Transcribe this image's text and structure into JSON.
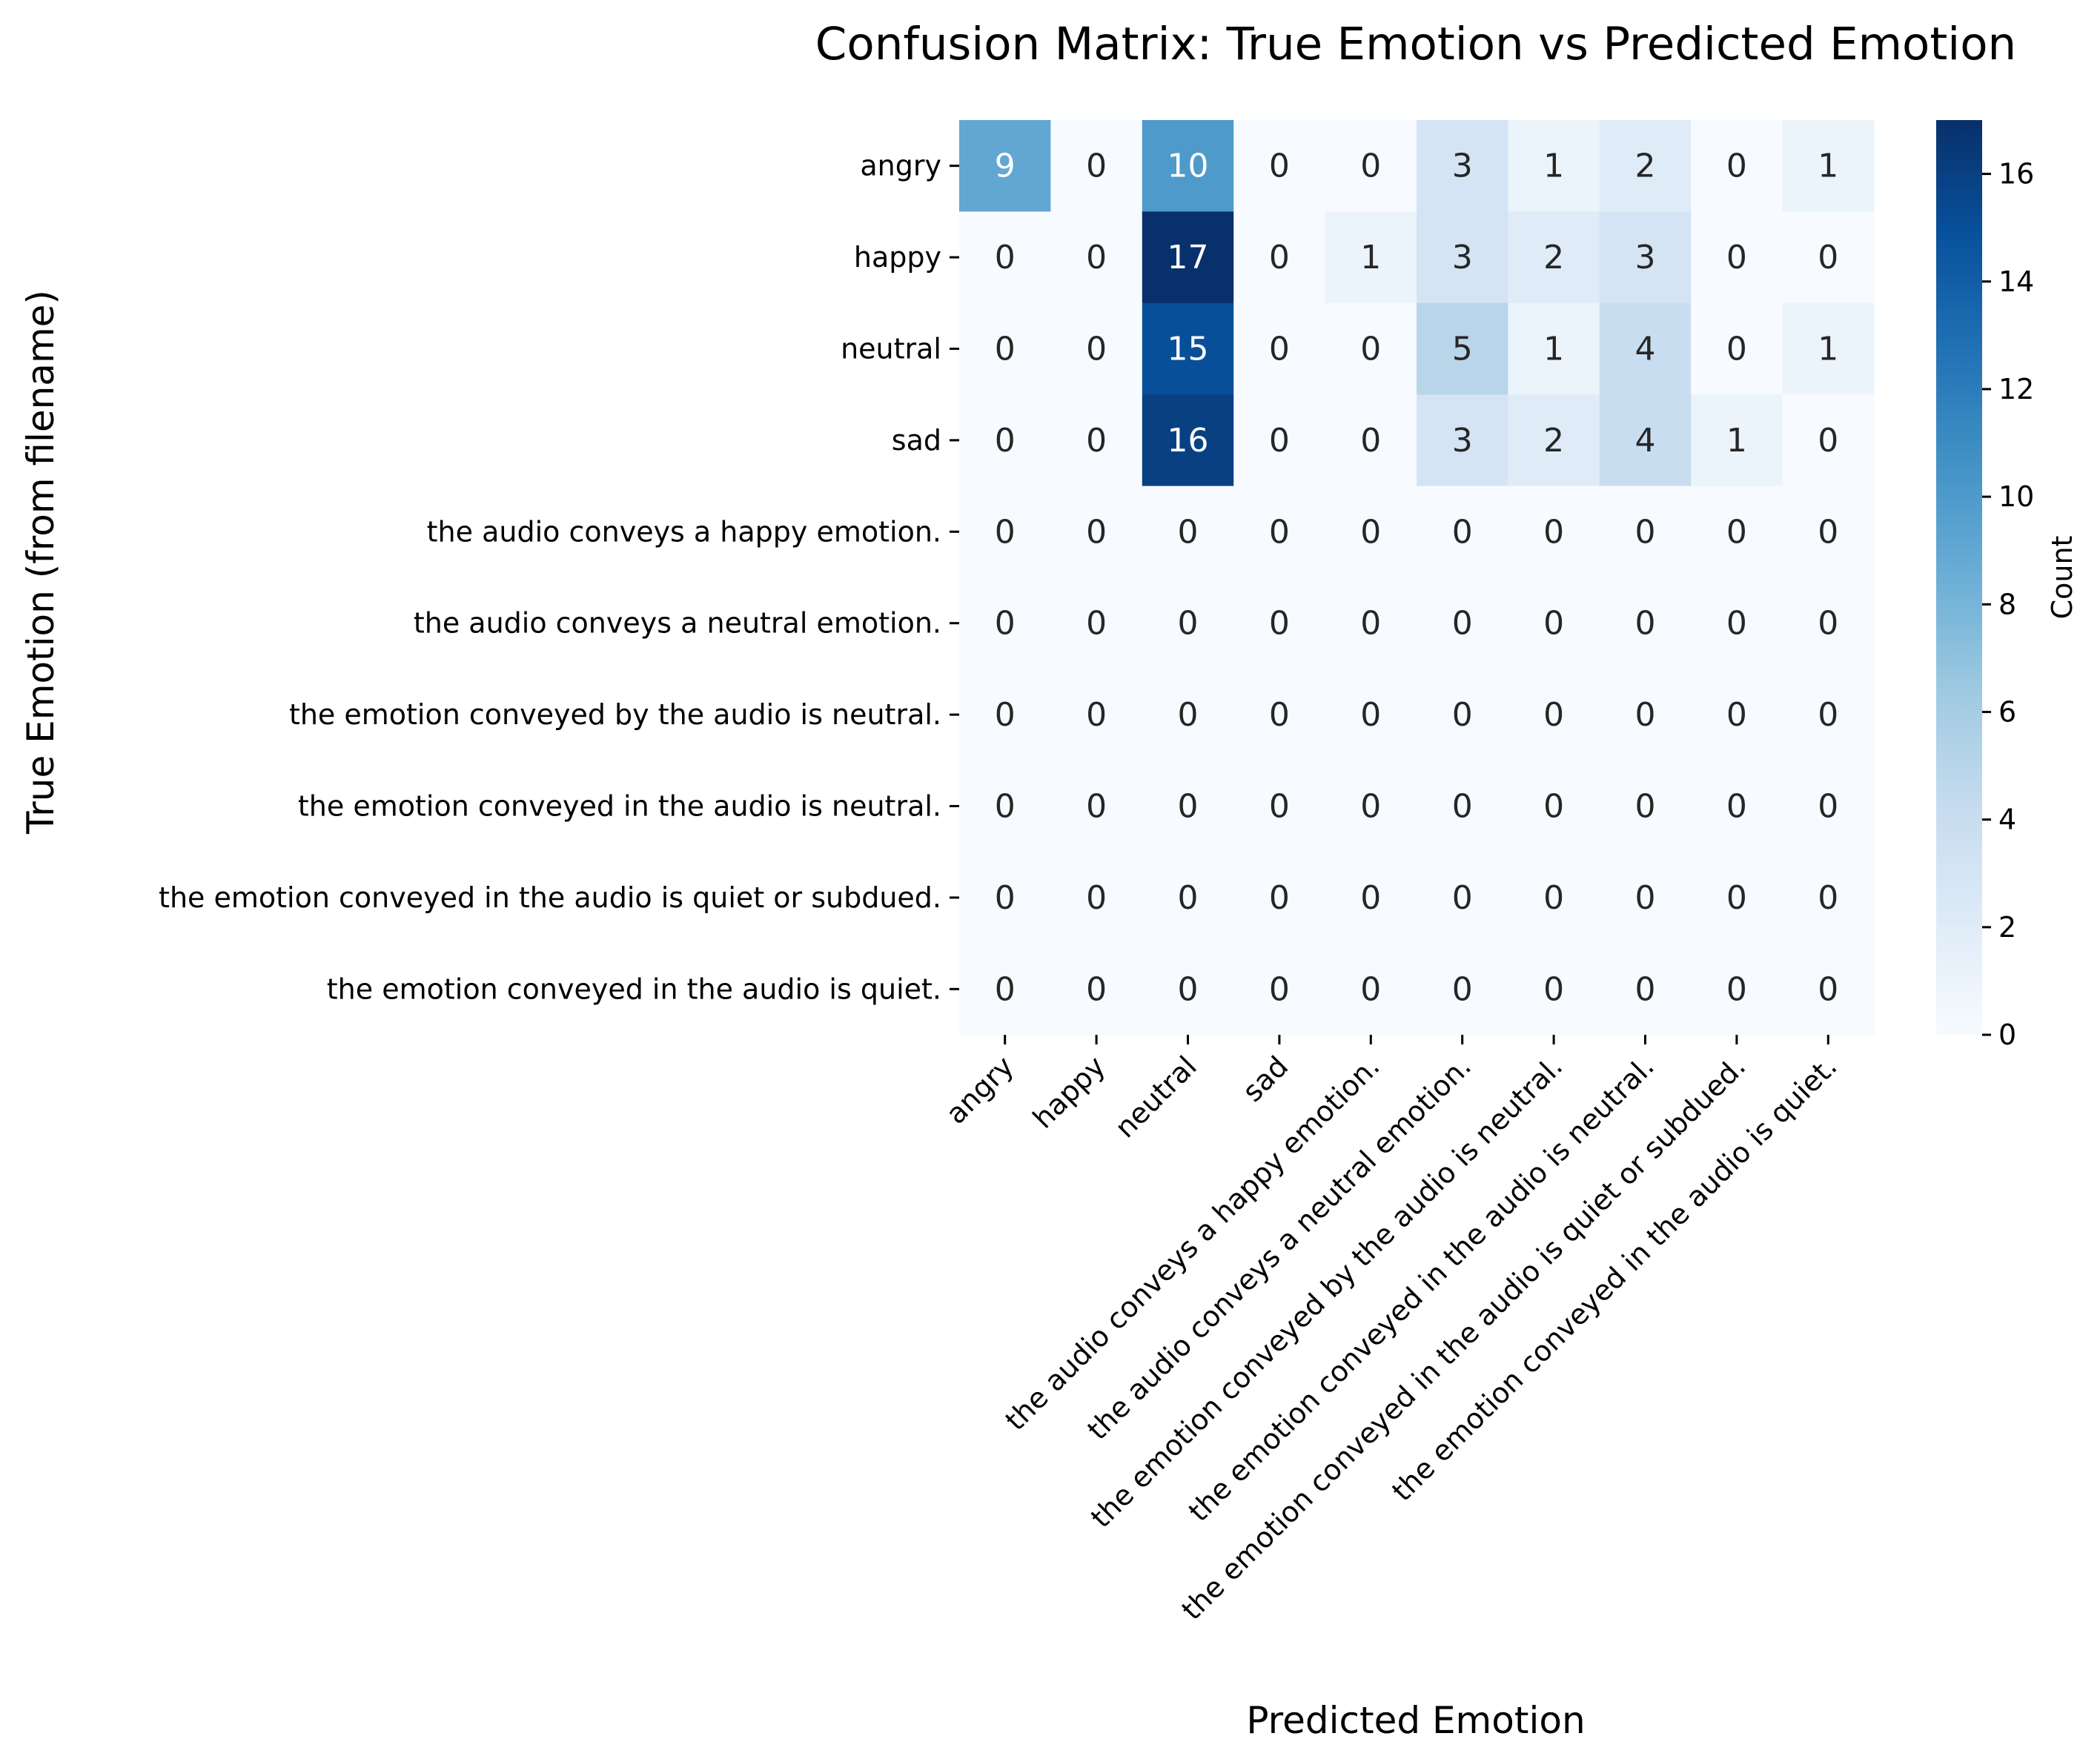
{
  "chart_data": {
    "type": "heatmap",
    "title": "Confusion Matrix: True Emotion vs Predicted Emotion",
    "xlabel": "Predicted Emotion",
    "ylabel": "True Emotion (from filename)",
    "x_categories": [
      "angry",
      "happy",
      "neutral",
      "sad",
      "the audio conveys a happy emotion.",
      "the audio conveys a neutral emotion.",
      "the emotion conveyed by the audio is neutral.",
      "the emotion conveyed in the audio is neutral.",
      "the emotion conveyed in the audio is quiet or subdued.",
      "the emotion conveyed in the audio is quiet."
    ],
    "y_categories": [
      "angry",
      "happy",
      "neutral",
      "sad",
      "the audio conveys a happy emotion.",
      "the audio conveys a neutral emotion.",
      "the emotion conveyed by the audio is neutral.",
      "the emotion conveyed in the audio is neutral.",
      "the emotion conveyed in the audio is quiet or subdued.",
      "the emotion conveyed in the audio is quiet."
    ],
    "values": [
      [
        9,
        0,
        10,
        0,
        0,
        3,
        1,
        2,
        0,
        1
      ],
      [
        0,
        0,
        17,
        0,
        1,
        3,
        2,
        3,
        0,
        0
      ],
      [
        0,
        0,
        15,
        0,
        0,
        5,
        1,
        4,
        0,
        1
      ],
      [
        0,
        0,
        16,
        0,
        0,
        3,
        2,
        4,
        1,
        0
      ],
      [
        0,
        0,
        0,
        0,
        0,
        0,
        0,
        0,
        0,
        0
      ],
      [
        0,
        0,
        0,
        0,
        0,
        0,
        0,
        0,
        0,
        0
      ],
      [
        0,
        0,
        0,
        0,
        0,
        0,
        0,
        0,
        0,
        0
      ],
      [
        0,
        0,
        0,
        0,
        0,
        0,
        0,
        0,
        0,
        0
      ],
      [
        0,
        0,
        0,
        0,
        0,
        0,
        0,
        0,
        0,
        0
      ],
      [
        0,
        0,
        0,
        0,
        0,
        0,
        0,
        0,
        0,
        0
      ]
    ],
    "colorbar": {
      "label": "Count",
      "range": [
        0,
        17
      ],
      "ticks": [
        0,
        2,
        4,
        6,
        8,
        10,
        12,
        14,
        16
      ],
      "colormap": "Blues"
    }
  }
}
